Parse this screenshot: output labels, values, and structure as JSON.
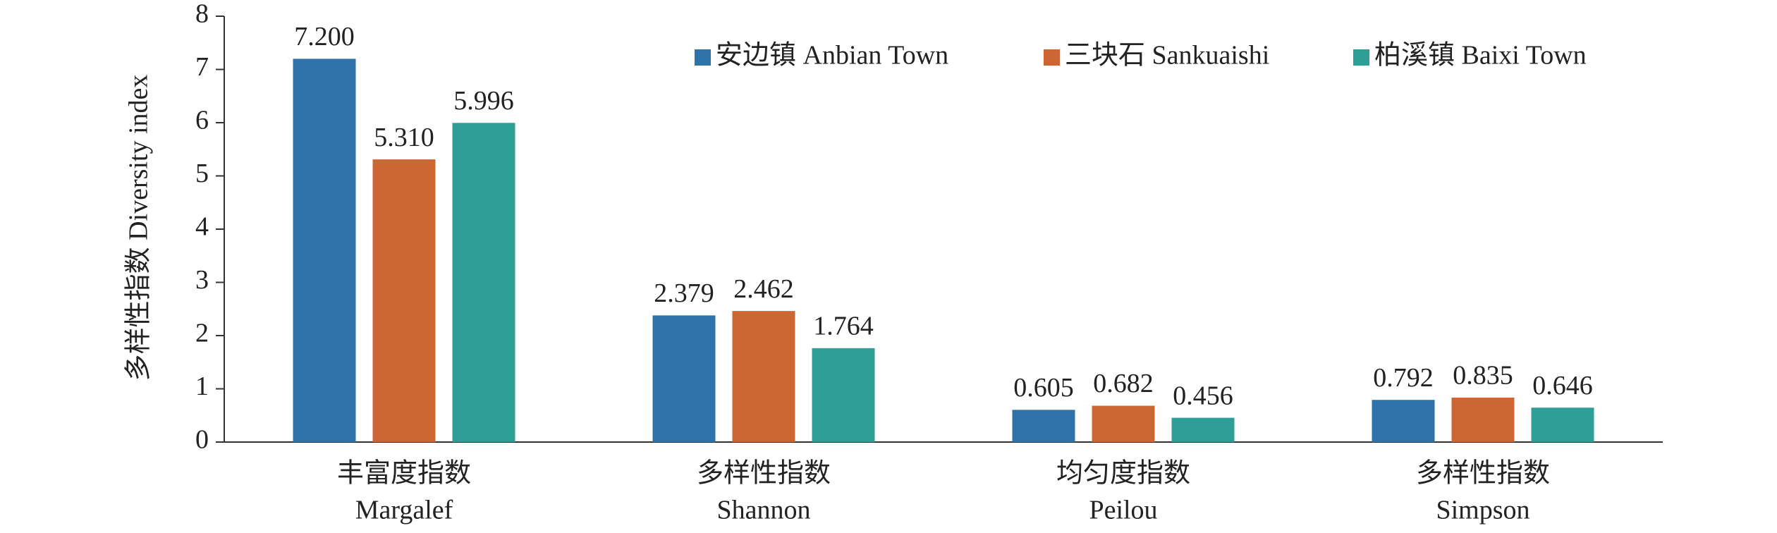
{
  "chart_data": {
    "type": "bar",
    "y_label": "多样性指数 Diversity index",
    "categories": [
      [
        "丰富度指数",
        "Margalef"
      ],
      [
        "多样性指数",
        "Shannon"
      ],
      [
        "均匀度指数",
        "Peilou"
      ],
      [
        "多样性指数",
        "Simpson"
      ]
    ],
    "series": [
      {
        "name": "安边镇 Anbian Town",
        "color": "#2e74a8",
        "values": [
          7.2,
          2.379,
          0.605,
          0.792
        ],
        "value_labels": [
          "7.200",
          "2.379",
          "0.605",
          "0.792"
        ]
      },
      {
        "name": "三块石 Sankuaishi",
        "color": "#cc6633",
        "values": [
          5.31,
          2.462,
          0.682,
          0.835
        ],
        "value_labels": [
          "5.310",
          "2.462",
          "0.682",
          "0.835"
        ]
      },
      {
        "name": "柏溪镇 Baixi Town",
        "color": "#2e9e96",
        "values": [
          5.996,
          1.764,
          0.456,
          0.646
        ],
        "value_labels": [
          "5.996",
          "1.764",
          "0.456",
          "0.646"
        ]
      }
    ],
    "ylim": [
      0,
      8
    ],
    "yticks": [
      0,
      1,
      2,
      3,
      4,
      5,
      6,
      7,
      8
    ],
    "legend": "top-right"
  }
}
